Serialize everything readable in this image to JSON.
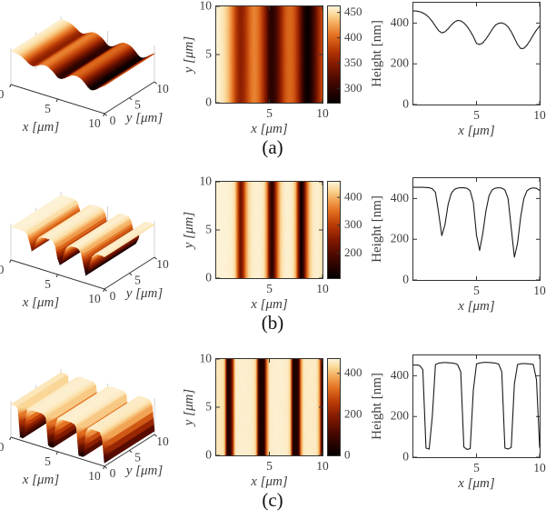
{
  "figure": {
    "background": "#ffffff",
    "axis_color": "#333333",
    "tick_label_color": "#3d3d3d",
    "line_color": "#1a1a1a",
    "grid3d_color": "#cfcfcf"
  },
  "chart_data": {
    "type": "heatmap",
    "panel_types": [
      "3d-surface",
      "heatmap-with-colorbar",
      "line-profile"
    ],
    "x_unit": "μm",
    "height_unit": "nm",
    "x_step": 0.25,
    "xlim": [
      0,
      10
    ],
    "ylim_surface": [
      0,
      10
    ],
    "zlim": [
      0,
      500
    ],
    "colormap_stops": [
      [
        0.0,
        [
          5,
          0,
          0
        ]
      ],
      [
        0.1,
        [
          35,
          2,
          0
        ]
      ],
      [
        0.25,
        [
          80,
          10,
          0
        ]
      ],
      [
        0.4,
        [
          132,
          26,
          0
        ]
      ],
      [
        0.55,
        [
          185,
          58,
          6
        ]
      ],
      [
        0.7,
        [
          226,
          112,
          32
        ]
      ],
      [
        0.82,
        [
          243,
          167,
          88
        ]
      ],
      [
        0.92,
        [
          250,
          216,
          152
        ]
      ],
      [
        1.0,
        [
          253,
          243,
          216
        ]
      ]
    ],
    "rows": [
      {
        "caption": "(a)",
        "clim": [
          272,
          462
        ],
        "noise_nm": 4,
        "heights": [
          460,
          459,
          456,
          450,
          441,
          427,
          408,
          385,
          363,
          352,
          357,
          372,
          390,
          405,
          413,
          411,
          401,
          384,
          361,
          334,
          300,
          295,
          303,
          322,
          345,
          370,
          390,
          399,
          401,
          395,
          381,
          358,
          327,
          295,
          275,
          276,
          292,
          315,
          342,
          366,
          385
        ],
        "surface3d": {
          "xlabel": "x [μm]",
          "ylabel": "y [μm]",
          "xticks": [
            0,
            5,
            10
          ],
          "yticks": [
            0,
            5,
            10
          ]
        },
        "heatmap": {
          "xlabel": "x [μm]",
          "ylabel": "y [μm]",
          "xticks": [
            5,
            10
          ],
          "yticks": [
            0,
            5,
            10
          ],
          "colorbar_ticks": [
            300,
            350,
            400,
            450
          ]
        },
        "profile_plot": {
          "xlabel": "x [μm]",
          "ylabel": "Height [nm]",
          "xticks": [
            5,
            10
          ],
          "yticks": [
            0,
            200,
            400
          ],
          "ylim": [
            0,
            500
          ]
        }
      },
      {
        "caption": "(b)",
        "clim": [
          110,
          456
        ],
        "noise_nm": 6,
        "heights": [
          455,
          455,
          455,
          455,
          454,
          453,
          448,
          430,
          330,
          218,
          270,
          370,
          425,
          445,
          451,
          453,
          453,
          450,
          438,
          380,
          220,
          145,
          230,
          340,
          415,
          443,
          451,
          453,
          451,
          442,
          400,
          255,
          112,
          180,
          310,
          400,
          438,
          449,
          452,
          450,
          440
        ],
        "surface3d": {
          "xlabel": "x [μm]",
          "ylabel": "y [μm]",
          "xticks": [
            0,
            5,
            10
          ],
          "yticks": [
            0,
            5,
            10
          ]
        },
        "heatmap": {
          "xlabel": "x [μm]",
          "ylabel": "y [μm]",
          "xticks": [
            5,
            10
          ],
          "yticks": [
            0,
            5,
            10
          ],
          "colorbar_ticks": [
            200,
            300,
            400
          ]
        },
        "profile_plot": {
          "xlabel": "x [μm]",
          "ylabel": "Height [nm]",
          "xticks": [
            5,
            10
          ],
          "yticks": [
            0,
            200,
            400
          ],
          "ylim": [
            0,
            500
          ]
        }
      },
      {
        "caption": "(c)",
        "clim": [
          0,
          470
        ],
        "noise_nm": 7,
        "heights": [
          452,
          453,
          450,
          430,
          45,
          40,
          200,
          455,
          462,
          464,
          465,
          464,
          463,
          461,
          455,
          420,
          50,
          38,
          42,
          330,
          458,
          463,
          465,
          466,
          465,
          464,
          462,
          458,
          420,
          45,
          40,
          48,
          360,
          455,
          459,
          460,
          459,
          458,
          455,
          380,
          48
        ],
        "surface3d": {
          "xlabel": "x [μm]",
          "ylabel": "y [μm]",
          "xticks": [
            0,
            5,
            10
          ],
          "yticks": [
            0,
            5,
            10
          ]
        },
        "heatmap": {
          "xlabel": "x [μm]",
          "ylabel": "y [μm]",
          "xticks": [
            5,
            10
          ],
          "yticks": [
            0,
            5,
            10
          ],
          "colorbar_ticks": [
            0,
            200,
            400
          ]
        },
        "profile_plot": {
          "xlabel": "x [μm]",
          "ylabel": "Height [nm]",
          "xticks": [
            5,
            10
          ],
          "yticks": [
            0,
            200,
            400
          ],
          "ylim": [
            0,
            500
          ]
        }
      }
    ]
  }
}
